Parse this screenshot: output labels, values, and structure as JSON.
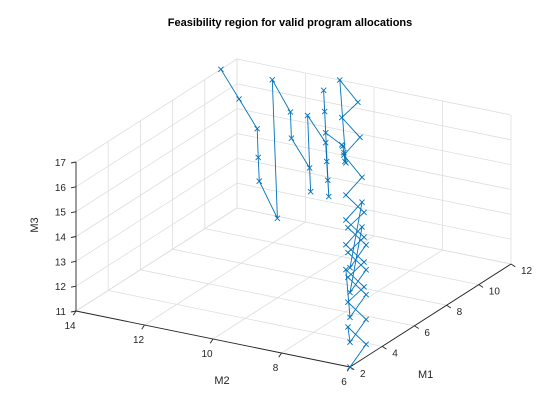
{
  "chart_data": {
    "type": "line",
    "title": "Feasibility region for valid program allocations",
    "xlabel": "M1",
    "ylabel": "M2",
    "zlabel": "M3",
    "xlim": [
      2,
      12
    ],
    "ylim": [
      6,
      14
    ],
    "zlim": [
      11,
      17
    ],
    "x_ticks": [
      "2",
      "4",
      "6",
      "8",
      "10",
      "12"
    ],
    "y_ticks": [
      "6",
      "8",
      "10",
      "12",
      "14"
    ],
    "z_ticks": [
      "11",
      "12",
      "13",
      "14",
      "15",
      "16",
      "17"
    ],
    "grid": true,
    "series": [
      {
        "marker": "x",
        "color": "#0072bd",
        "points": [
          [
            2,
            6,
            11
          ],
          [
            3,
            6,
            11.5
          ],
          [
            4,
            7,
            11.5
          ],
          [
            2,
            6,
            12
          ],
          [
            3,
            6,
            12.5
          ],
          [
            4,
            7,
            12.5
          ],
          [
            5,
            7,
            12.7
          ],
          [
            6,
            8,
            12.7
          ],
          [
            2,
            6,
            13
          ],
          [
            3,
            6,
            13.5
          ],
          [
            4,
            7,
            13.5
          ],
          [
            5,
            7,
            13.7
          ],
          [
            6,
            8,
            13.7
          ],
          [
            7,
            8,
            14
          ],
          [
            2,
            6,
            14
          ],
          [
            3,
            6,
            14.5
          ],
          [
            4,
            7,
            14.5
          ],
          [
            5,
            7,
            14.7
          ],
          [
            6,
            8,
            14.7
          ],
          [
            7,
            8,
            15
          ],
          [
            2,
            6,
            15
          ],
          [
            3,
            6,
            15.5
          ],
          [
            4,
            7,
            15.5
          ],
          [
            5,
            7,
            15.7
          ],
          [
            6,
            8,
            15.7
          ],
          [
            7,
            8,
            16
          ],
          [
            8,
            9,
            16.2
          ],
          [
            9,
            9,
            16.5
          ],
          [
            10,
            10,
            16.6
          ],
          [
            11,
            10,
            16.8
          ],
          [
            12,
            11,
            17
          ],
          [
            6,
            8,
            17
          ],
          [
            7,
            8.5,
            16.5
          ],
          [
            8,
            9,
            16.3
          ],
          [
            9,
            9.5,
            16
          ],
          [
            10,
            10,
            15.5
          ],
          [
            9,
            10,
            16.4
          ],
          [
            10,
            10.5,
            16.7
          ],
          [
            11,
            11,
            17
          ],
          [
            6,
            8.5,
            15.5
          ],
          [
            7,
            9,
            15.6
          ],
          [
            8,
            9.5,
            15.8
          ],
          [
            9,
            10,
            16
          ],
          [
            10,
            11,
            16.4
          ],
          [
            7,
            9.5,
            15
          ],
          [
            8,
            10,
            15.4
          ],
          [
            9,
            11,
            15.9
          ],
          [
            10,
            11.5,
            16.4
          ],
          [
            11,
            12.5,
            17
          ],
          [
            6,
            10,
            14.2
          ],
          [
            7,
            11,
            15
          ],
          [
            8,
            11.5,
            15.4
          ],
          [
            9,
            12,
            16
          ],
          [
            10,
            13,
            16.5
          ],
          [
            11,
            14,
            17
          ]
        ]
      }
    ]
  }
}
